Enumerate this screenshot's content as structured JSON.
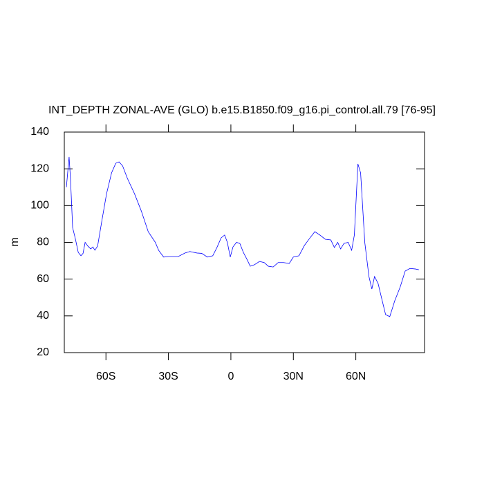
{
  "chart_data": {
    "type": "line",
    "title": "INT_DEPTH ZONAL-AVE (GLO) b.e15.B1850.f09_g16.pi_control.all.79 [76-95]",
    "y_label": "m",
    "x": [
      -79,
      -77.7,
      -77,
      -76,
      -74.7,
      -73.3,
      -72,
      -71,
      -70,
      -68.7,
      -67.3,
      -66.3,
      -65.3,
      -64,
      -62,
      -59.7,
      -57.3,
      -55.3,
      -53.7,
      -52,
      -49.7,
      -46.3,
      -43,
      -39.7,
      -36.3,
      -34.7,
      -32.3,
      -29.7,
      -25.3,
      -22,
      -19.7,
      -16.3,
      -14,
      -11.3,
      -8.7,
      -6.7,
      -4.7,
      -3,
      -1.7,
      -0.3,
      1,
      2.7,
      4.3,
      6,
      7.7,
      9.3,
      11.3,
      13.7,
      16,
      18,
      20.3,
      22.7,
      25.3,
      28,
      30,
      32.7,
      35.3,
      37.7,
      40.3,
      42.7,
      45.3,
      48,
      49.7,
      51.3,
      52.7,
      54.3,
      56.3,
      58,
      59.3,
      61,
      62.3,
      64.3,
      66.3,
      67.7,
      69,
      70.7,
      72.3,
      74.3,
      76.3,
      78.7,
      81.3,
      83.7,
      86,
      88.7,
      90.3
    ],
    "series": [
      {
        "color": "#0000ff",
        "values": [
          110,
          126.5,
          114,
          88,
          82,
          74.5,
          72.7,
          74,
          80,
          78,
          76.4,
          77.5,
          75.7,
          78,
          91.5,
          106.5,
          117.8,
          123,
          123.8,
          121.6,
          114.8,
          106.5,
          97,
          85.8,
          80,
          75.7,
          72,
          72.3,
          72.3,
          74.2,
          75,
          74.2,
          74,
          72,
          72.7,
          77.2,
          82.4,
          84,
          80,
          72,
          77.5,
          80,
          79.4,
          74.5,
          70.8,
          67,
          67.8,
          69.6,
          69,
          67,
          66.6,
          69,
          69,
          68.5,
          72,
          72.7,
          78.3,
          82,
          85.8,
          84,
          81.7,
          81.3,
          77.2,
          80,
          76.4,
          79.4,
          80,
          75.7,
          84,
          122.7,
          117.8,
          80,
          61.4,
          54.6,
          61.4,
          57.6,
          50,
          40.7,
          39.6,
          48.2,
          55.7,
          64.4,
          65.8,
          65.5,
          65.1
        ]
      }
    ],
    "xlim": [
      -80,
      93
    ],
    "xticks": [
      {
        "value": -60,
        "label": "60S"
      },
      {
        "value": -30,
        "label": "30S"
      },
      0,
      {
        "value": 30,
        "label": "30N"
      },
      {
        "value": 60,
        "label": "60N"
      }
    ],
    "ylim": [
      20,
      140
    ],
    "yticks": [
      20,
      40,
      60,
      80,
      100,
      120,
      140
    ]
  }
}
